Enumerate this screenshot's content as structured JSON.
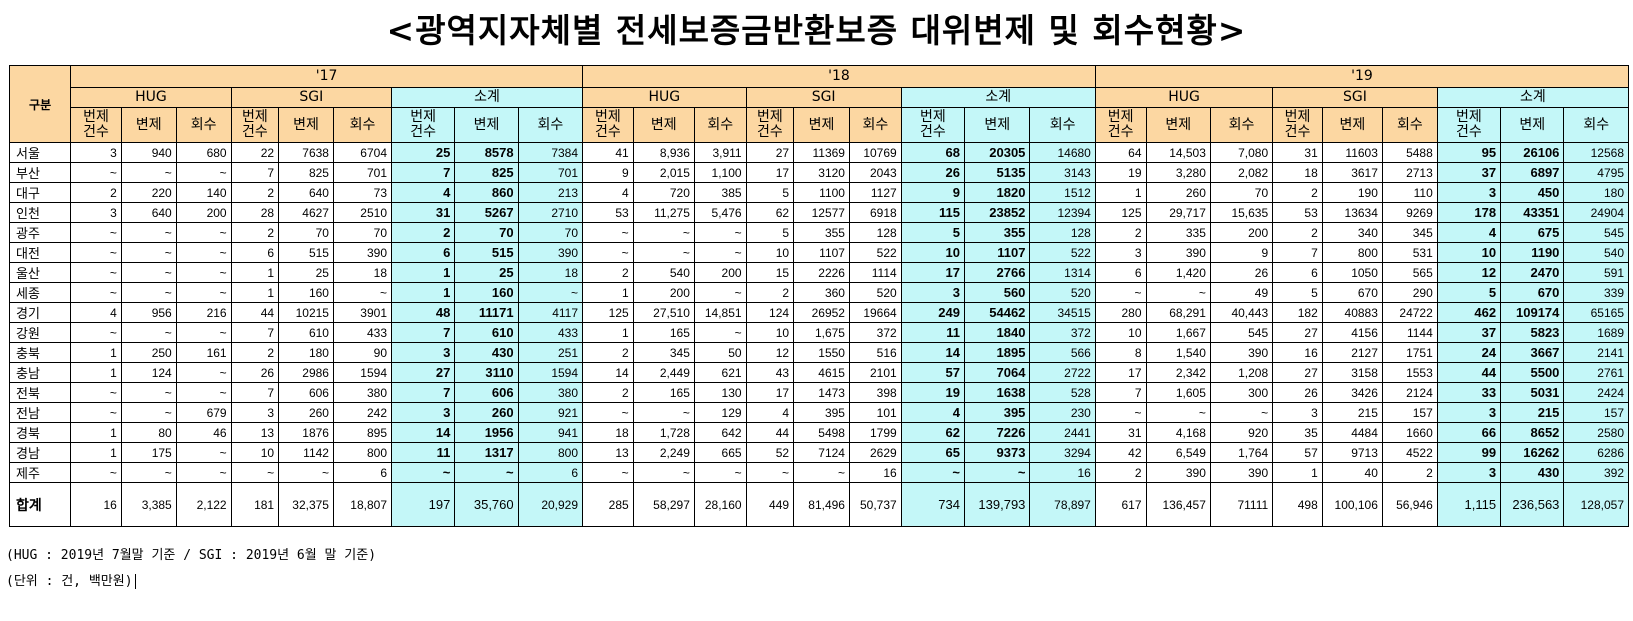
{
  "title": "<광역지자체별 전세보증금반환보증 대위변제 및 회수현황>",
  "header": {
    "corner": "구분",
    "years": [
      "'17",
      "'18",
      "'19"
    ],
    "groups": [
      "HUG",
      "SGI",
      "소계"
    ],
    "cols3": [
      "번제\n건수",
      "변제",
      "회수"
    ]
  },
  "rows": [
    {
      "region": "서울",
      "y17": [
        "3",
        "940",
        "680",
        "22",
        "7638",
        "6704",
        "25",
        "8578",
        "7384"
      ],
      "y18": [
        "41",
        "8,936",
        "3,911",
        "27",
        "11369",
        "10769",
        "68",
        "20305",
        "14680"
      ],
      "y19": [
        "64",
        "14,503",
        "7,080",
        "31",
        "11603",
        "5488",
        "95",
        "26106",
        "12568"
      ]
    },
    {
      "region": "부산",
      "y17": [
        "~",
        "~",
        "~",
        "7",
        "825",
        "701",
        "7",
        "825",
        "701"
      ],
      "y18": [
        "9",
        "2,015",
        "1,100",
        "17",
        "3120",
        "2043",
        "26",
        "5135",
        "3143"
      ],
      "y19": [
        "19",
        "3,280",
        "2,082",
        "18",
        "3617",
        "2713",
        "37",
        "6897",
        "4795"
      ]
    },
    {
      "region": "대구",
      "y17": [
        "2",
        "220",
        "140",
        "2",
        "640",
        "73",
        "4",
        "860",
        "213"
      ],
      "y18": [
        "4",
        "720",
        "385",
        "5",
        "1100",
        "1127",
        "9",
        "1820",
        "1512"
      ],
      "y19": [
        "1",
        "260",
        "70",
        "2",
        "190",
        "110",
        "3",
        "450",
        "180"
      ]
    },
    {
      "region": "인천",
      "y17": [
        "3",
        "640",
        "200",
        "28",
        "4627",
        "2510",
        "31",
        "5267",
        "2710"
      ],
      "y18": [
        "53",
        "11,275",
        "5,476",
        "62",
        "12577",
        "6918",
        "115",
        "23852",
        "12394"
      ],
      "y19": [
        "125",
        "29,717",
        "15,635",
        "53",
        "13634",
        "9269",
        "178",
        "43351",
        "24904"
      ]
    },
    {
      "region": "광주",
      "y17": [
        "~",
        "~",
        "~",
        "2",
        "70",
        "70",
        "2",
        "70",
        "70"
      ],
      "y18": [
        "~",
        "~",
        "~",
        "5",
        "355",
        "128",
        "5",
        "355",
        "128"
      ],
      "y19": [
        "2",
        "335",
        "200",
        "2",
        "340",
        "345",
        "4",
        "675",
        "545"
      ]
    },
    {
      "region": "대전",
      "y17": [
        "~",
        "~",
        "~",
        "6",
        "515",
        "390",
        "6",
        "515",
        "390"
      ],
      "y18": [
        "~",
        "~",
        "~",
        "10",
        "1107",
        "522",
        "10",
        "1107",
        "522"
      ],
      "y19": [
        "3",
        "390",
        "9",
        "7",
        "800",
        "531",
        "10",
        "1190",
        "540"
      ]
    },
    {
      "region": "울산",
      "y17": [
        "~",
        "~",
        "~",
        "1",
        "25",
        "18",
        "1",
        "25",
        "18"
      ],
      "y18": [
        "2",
        "540",
        "200",
        "15",
        "2226",
        "1114",
        "17",
        "2766",
        "1314"
      ],
      "y19": [
        "6",
        "1,420",
        "26",
        "6",
        "1050",
        "565",
        "12",
        "2470",
        "591"
      ]
    },
    {
      "region": "세종",
      "y17": [
        "~",
        "~",
        "~",
        "1",
        "160",
        "~",
        "1",
        "160",
        "~"
      ],
      "y18": [
        "1",
        "200",
        "~",
        "2",
        "360",
        "520",
        "3",
        "560",
        "520"
      ],
      "y19": [
        "~",
        "~",
        "49",
        "5",
        "670",
        "290",
        "5",
        "670",
        "339"
      ]
    },
    {
      "region": "경기",
      "y17": [
        "4",
        "956",
        "216",
        "44",
        "10215",
        "3901",
        "48",
        "11171",
        "4117"
      ],
      "y18": [
        "125",
        "27,510",
        "14,851",
        "124",
        "26952",
        "19664",
        "249",
        "54462",
        "34515"
      ],
      "y19": [
        "280",
        "68,291",
        "40,443",
        "182",
        "40883",
        "24722",
        "462",
        "109174",
        "65165"
      ]
    },
    {
      "region": "강원",
      "y17": [
        "~",
        "~",
        "~",
        "7",
        "610",
        "433",
        "7",
        "610",
        "433"
      ],
      "y18": [
        "1",
        "165",
        "~",
        "10",
        "1,675",
        "372",
        "11",
        "1840",
        "372"
      ],
      "y19": [
        "10",
        "1,667",
        "545",
        "27",
        "4156",
        "1144",
        "37",
        "5823",
        "1689"
      ]
    },
    {
      "region": "충북",
      "y17": [
        "1",
        "250",
        "161",
        "2",
        "180",
        "90",
        "3",
        "430",
        "251"
      ],
      "y18": [
        "2",
        "345",
        "50",
        "12",
        "1550",
        "516",
        "14",
        "1895",
        "566"
      ],
      "y19": [
        "8",
        "1,540",
        "390",
        "16",
        "2127",
        "1751",
        "24",
        "3667",
        "2141"
      ]
    },
    {
      "region": "충남",
      "y17": [
        "1",
        "124",
        "~",
        "26",
        "2986",
        "1594",
        "27",
        "3110",
        "1594"
      ],
      "y18": [
        "14",
        "2,449",
        "621",
        "43",
        "4615",
        "2101",
        "57",
        "7064",
        "2722"
      ],
      "y19": [
        "17",
        "2,342",
        "1,208",
        "27",
        "3158",
        "1553",
        "44",
        "5500",
        "2761"
      ]
    },
    {
      "region": "전북",
      "y17": [
        "~",
        "~",
        "~",
        "7",
        "606",
        "380",
        "7",
        "606",
        "380"
      ],
      "y18": [
        "2",
        "165",
        "130",
        "17",
        "1473",
        "398",
        "19",
        "1638",
        "528"
      ],
      "y19": [
        "7",
        "1,605",
        "300",
        "26",
        "3426",
        "2124",
        "33",
        "5031",
        "2424"
      ]
    },
    {
      "region": "전남",
      "y17": [
        "~",
        "~",
        "679",
        "3",
        "260",
        "242",
        "3",
        "260",
        "921"
      ],
      "y18": [
        "~",
        "~",
        "129",
        "4",
        "395",
        "101",
        "4",
        "395",
        "230"
      ],
      "y19": [
        "~",
        "~",
        "~",
        "3",
        "215",
        "157",
        "3",
        "215",
        "157"
      ]
    },
    {
      "region": "경북",
      "y17": [
        "1",
        "80",
        "46",
        "13",
        "1876",
        "895",
        "14",
        "1956",
        "941"
      ],
      "y18": [
        "18",
        "1,728",
        "642",
        "44",
        "5498",
        "1799",
        "62",
        "7226",
        "2441"
      ],
      "y19": [
        "31",
        "4,168",
        "920",
        "35",
        "4484",
        "1660",
        "66",
        "8652",
        "2580"
      ]
    },
    {
      "region": "경남",
      "y17": [
        "1",
        "175",
        "~",
        "10",
        "1142",
        "800",
        "11",
        "1317",
        "800"
      ],
      "y18": [
        "13",
        "2,249",
        "665",
        "52",
        "7124",
        "2629",
        "65",
        "9373",
        "3294"
      ],
      "y19": [
        "42",
        "6,549",
        "1,764",
        "57",
        "9713",
        "4522",
        "99",
        "16262",
        "6286"
      ]
    },
    {
      "region": "제주",
      "y17": [
        "~",
        "~",
        "~",
        "~",
        "~",
        "6",
        "~",
        "~",
        "6"
      ],
      "y18": [
        "~",
        "~",
        "~",
        "~",
        "~",
        "16",
        "~",
        "~",
        "16"
      ],
      "y19": [
        "2",
        "390",
        "390",
        "1",
        "40",
        "2",
        "3",
        "430",
        "392"
      ]
    }
  ],
  "total": {
    "label": "합계",
    "y17": [
      "16",
      "3,385",
      "2,122",
      "181",
      "32,375",
      "18,807",
      "197",
      "35,760",
      "20,929"
    ],
    "y18": [
      "285",
      "58,297",
      "28,160",
      "449",
      "81,496",
      "50,737",
      "734",
      "139,793",
      "78,897"
    ],
    "y19": [
      "617",
      "136,457",
      "71111",
      "498",
      "100,106",
      "56,946",
      "1,115",
      "236,563",
      "128,057"
    ]
  },
  "notes": {
    "basis": "(HUG : 2019년 7월말 기준 / SGI : 2019년 6월 말 기준)",
    "unit": "(단위 : 건, 백만원)"
  }
}
